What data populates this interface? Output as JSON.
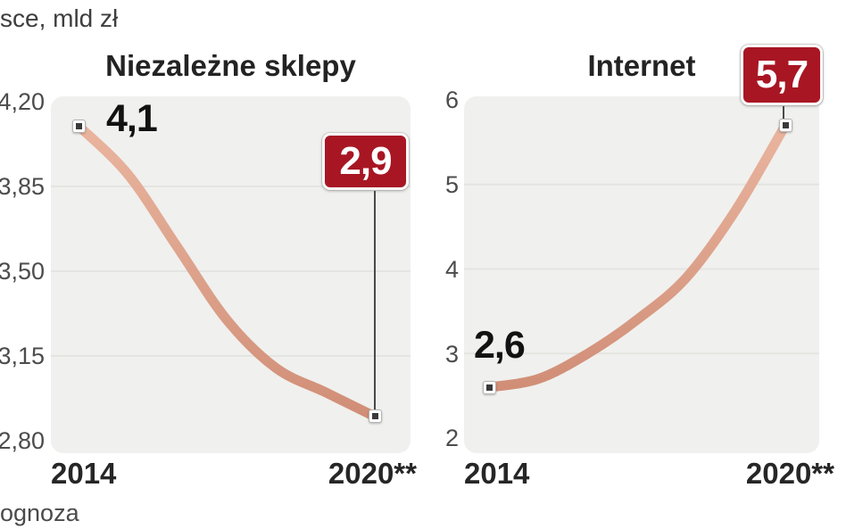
{
  "header": {
    "supertitle_fragment": "sce, mld zł"
  },
  "footnote": {
    "fragment": "ognoza"
  },
  "colors": {
    "line": "#dda28b",
    "line_highlight": "#e9b49e",
    "line_shadow": "#d18e77",
    "badge_red": "#a81623",
    "badge_text": "#ffffff",
    "plot_background": "#f0f0ee",
    "gridline": "#e4e4e1",
    "leader_line": "#4a4a4a",
    "marker_dot": "#3a3a3a",
    "text_dark": "#232323"
  },
  "charts": [
    {
      "title": "Niezależne sklepy",
      "y_ticks": [
        "4,20",
        "3,85",
        "3,50",
        "3,15",
        "2,80"
      ],
      "x_labels": [
        "2014",
        "2020**"
      ],
      "start_value_label": "4,1",
      "end_value_label": "2,9"
    },
    {
      "title": "Internet",
      "y_ticks": [
        "6",
        "5",
        "4",
        "3",
        "2"
      ],
      "x_labels": [
        "2014",
        "2020**"
      ],
      "start_value_label": "2,6",
      "end_value_label": "5,7"
    }
  ],
  "chart_data": [
    {
      "type": "line",
      "title": "Niezależne sklepy",
      "x": [
        2014,
        2015,
        2016,
        2017,
        2018,
        2019,
        2020
      ],
      "values": [
        4.1,
        3.9,
        3.6,
        3.3,
        3.1,
        3.0,
        2.9
      ],
      "labeled_points": {
        "2014": 4.1,
        "2020": 2.9
      },
      "ylim": [
        2.8,
        4.2
      ],
      "yticks": [
        2.8,
        3.15,
        3.5,
        3.85,
        4.2
      ],
      "xlabel": "",
      "ylabel": "",
      "x_axis_labels": [
        "2014",
        "2020**"
      ],
      "grid": "horizontal",
      "legend": "none",
      "note": "Only endpoints are labeled in source; intermediate values estimated from curve"
    },
    {
      "type": "line",
      "title": "Internet",
      "x": [
        2014,
        2015,
        2016,
        2017,
        2018,
        2019,
        2020
      ],
      "values": [
        2.6,
        2.7,
        3.0,
        3.4,
        3.9,
        4.7,
        5.7
      ],
      "labeled_points": {
        "2014": 2.6,
        "2020": 5.7
      },
      "ylim": [
        2,
        6
      ],
      "yticks": [
        2,
        3,
        4,
        5,
        6
      ],
      "xlabel": "",
      "ylabel": "",
      "x_axis_labels": [
        "2014",
        "2020**"
      ],
      "grid": "horizontal",
      "legend": "none",
      "note": "Only endpoints are labeled in source; intermediate values estimated from curve"
    }
  ]
}
